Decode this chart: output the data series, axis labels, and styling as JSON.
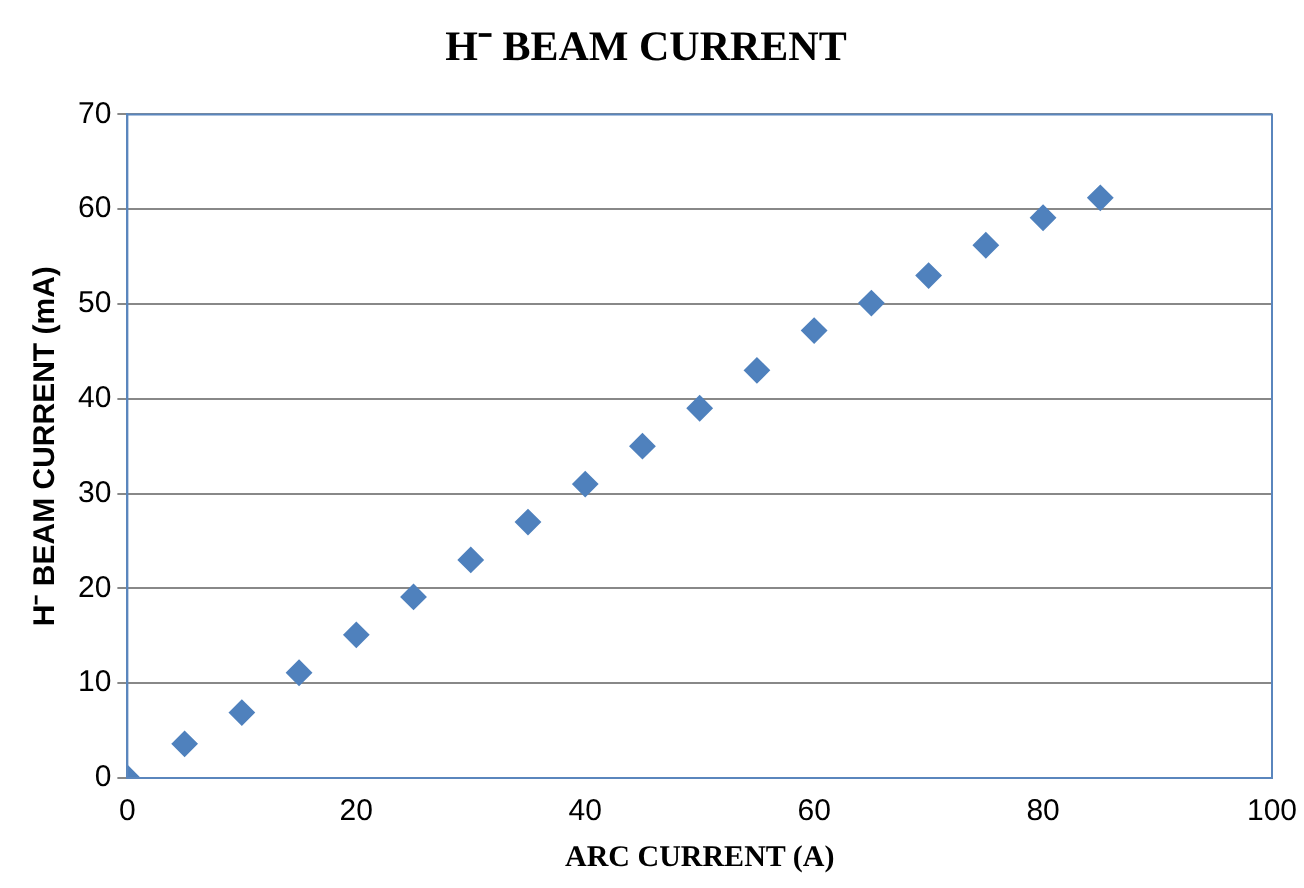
{
  "chart_data": {
    "type": "scatter",
    "title": "H⁻ BEAM CURRENT",
    "xlabel": "ARC CURRENT (A)",
    "ylabel": "H⁻ BEAM CURRENT (mA)",
    "x": [
      0,
      5,
      10,
      15,
      20,
      25,
      30,
      35,
      40,
      45,
      50,
      55,
      60,
      65,
      70,
      75,
      80,
      85
    ],
    "values": [
      0,
      3.6,
      6.9,
      11.1,
      15.1,
      19.1,
      23,
      27,
      31,
      35,
      39,
      43,
      47.2,
      50.1,
      53,
      56.2,
      59.1,
      61.2
    ],
    "color": "#4f81bd",
    "marker": "diamond",
    "grid": "y",
    "xlim": [
      0,
      100
    ],
    "xticks": [
      0,
      20,
      40,
      60,
      80,
      100
    ],
    "ylim": [
      0,
      70
    ],
    "yticks": [
      0,
      10,
      20,
      30,
      40,
      50,
      60,
      70
    ]
  }
}
